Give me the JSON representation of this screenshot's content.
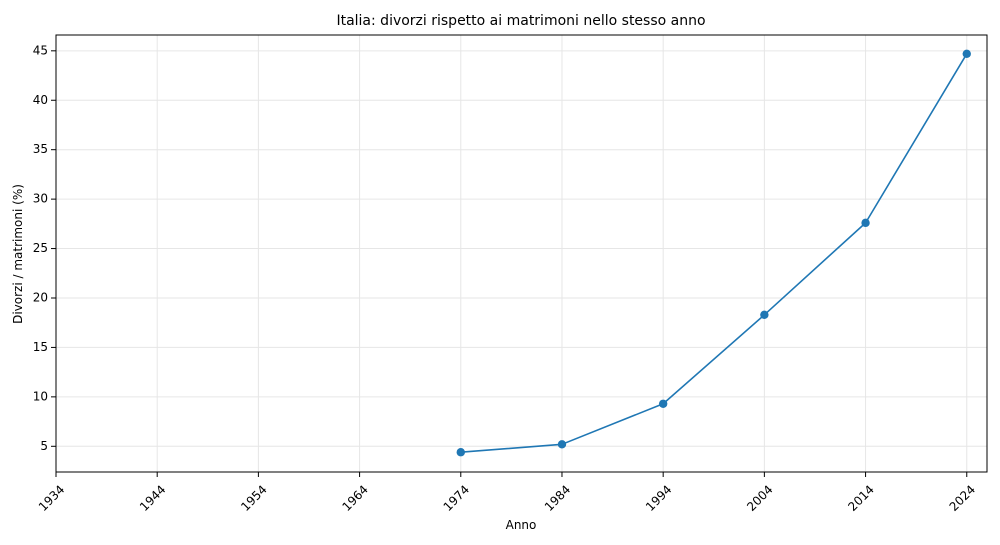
{
  "chart_data": {
    "type": "line",
    "title": "Italia: divorzi rispetto ai matrimoni nello stesso anno",
    "xlabel": "Anno",
    "ylabel": "Divorzi / matrimoni (%)",
    "x": [
      1974,
      1984,
      1994,
      2004,
      2014,
      2024
    ],
    "series": [
      {
        "name": "",
        "values": [
          4.4,
          5.2,
          9.3,
          18.3,
          27.6,
          44.7
        ],
        "color": "#1f77b4"
      }
    ],
    "xlim": [
      1934,
      2026
    ],
    "ylim": [
      2.4,
      46.6
    ],
    "xticks": [
      1934,
      1944,
      1954,
      1964,
      1974,
      1984,
      1994,
      2004,
      2014,
      2024
    ],
    "yticks": [
      5,
      10,
      15,
      20,
      25,
      30,
      35,
      40,
      45
    ],
    "grid": true,
    "marker": "circle"
  }
}
